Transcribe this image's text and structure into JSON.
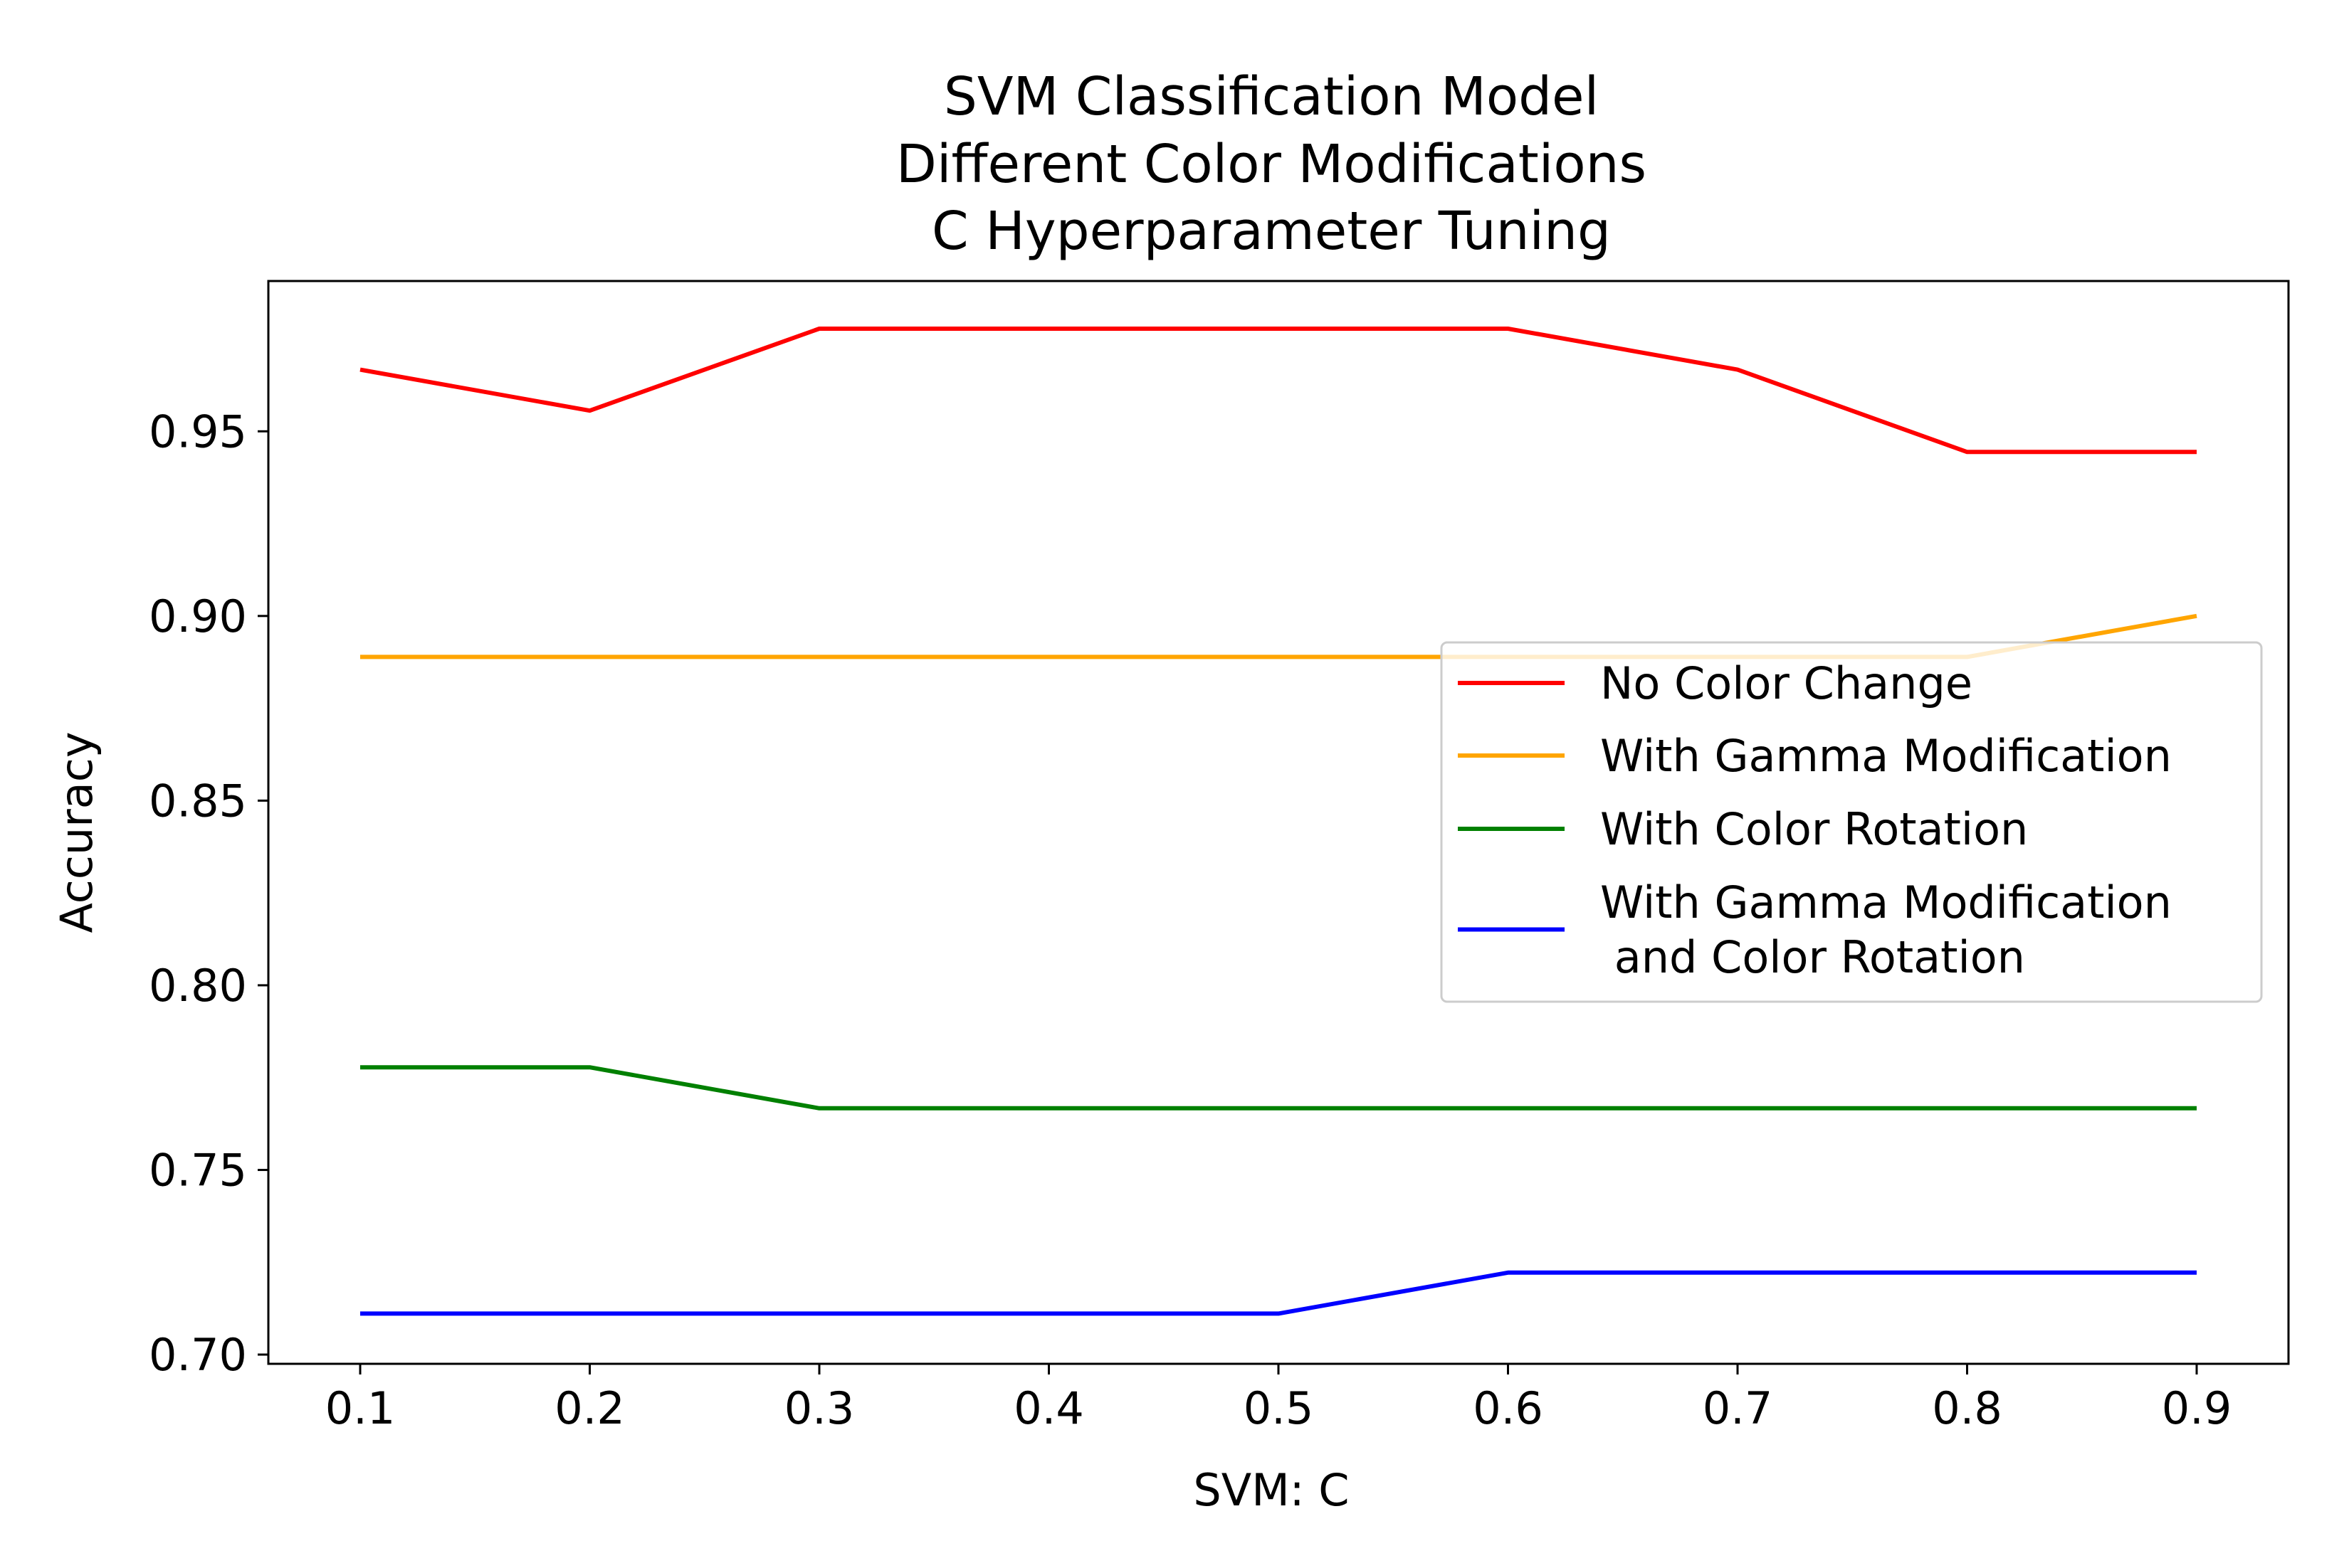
{
  "chart_data": {
    "type": "line",
    "title_lines": [
      "SVM Classification Model",
      "Different Color Modifications",
      "C Hyperparameter Tuning"
    ],
    "xlabel": "SVM: C",
    "ylabel": "Accuracy",
    "x": [
      0.1,
      0.2,
      0.3,
      0.4,
      0.5,
      0.6,
      0.7,
      0.8,
      0.9
    ],
    "x_ticks": [
      "0.1",
      "0.2",
      "0.3",
      "0.4",
      "0.5",
      "0.6",
      "0.7",
      "0.8",
      "0.9"
    ],
    "y_ticks": [
      "0.70",
      "0.75",
      "0.80",
      "0.85",
      "0.90",
      "0.95"
    ],
    "xlim": [
      0.06,
      0.94
    ],
    "ylim": [
      0.6975,
      0.9907
    ],
    "grid": false,
    "legend_position": "center-right",
    "series": [
      {
        "name": "No Color Change",
        "color": "#ff0000",
        "values": [
          0.9667,
          0.9556,
          0.9778,
          0.9778,
          0.9778,
          0.9778,
          0.9667,
          0.9444,
          0.9444
        ]
      },
      {
        "name": "With Gamma Modification",
        "color": "#ffa500",
        "values": [
          0.8889,
          0.8889,
          0.8889,
          0.8889,
          0.8889,
          0.8889,
          0.8889,
          0.8889,
          0.9
        ]
      },
      {
        "name": "With Color Rotation",
        "color": "#008000",
        "values": [
          0.7778,
          0.7778,
          0.7667,
          0.7667,
          0.7667,
          0.7667,
          0.7667,
          0.7667,
          0.7667
        ]
      },
      {
        "name": "With Gamma Modification\n and Color Rotation",
        "color": "#0000ff",
        "values": [
          0.7111,
          0.7111,
          0.7111,
          0.7111,
          0.7111,
          0.7222,
          0.7222,
          0.7222,
          0.7222
        ]
      }
    ]
  }
}
